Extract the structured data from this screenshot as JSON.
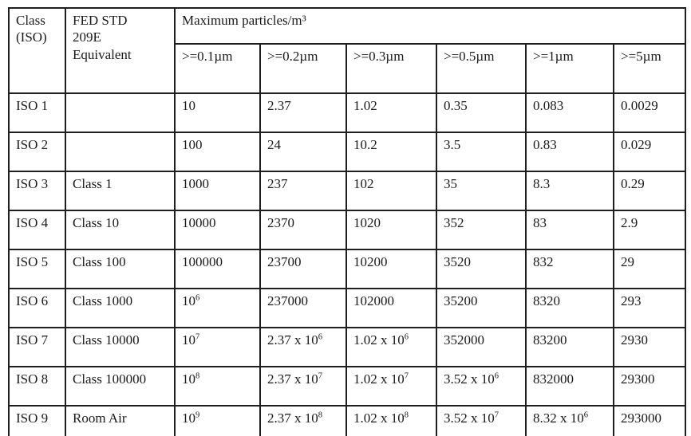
{
  "page": {
    "background": "#ffffff",
    "border_color": "#1f1f1f",
    "text_color": "#1a1a1a"
  },
  "table": {
    "header": {
      "class_iso": "Class\n(ISO)",
      "fed_std": "FED STD\n209E\nEquivalent",
      "group_title": "Maximum particles/m³",
      "subheaders": [
        ">=0.1µm",
        ">=0.2µm",
        ">=0.3µm",
        ">=0.5µm",
        ">=1µm",
        ">=5µm"
      ]
    },
    "rows": [
      {
        "iso": "ISO 1",
        "fed": "",
        "values": [
          "10",
          "2.37",
          "1.02",
          "0.35",
          "0.083",
          "0.0029"
        ]
      },
      {
        "iso": "ISO 2",
        "fed": "",
        "values": [
          "100",
          "24",
          "10.2",
          "3.5",
          "0.83",
          "0.029"
        ]
      },
      {
        "iso": "ISO 3",
        "fed": "Class 1",
        "values": [
          "1000",
          "237",
          "102",
          "35",
          "8.3",
          "0.29"
        ]
      },
      {
        "iso": "ISO 4",
        "fed": "Class 10",
        "values": [
          "10000",
          "2370",
          "1020",
          "352",
          "83",
          "2.9"
        ]
      },
      {
        "iso": "ISO 5",
        "fed": "Class 100",
        "values": [
          "100000",
          "23700",
          "10200",
          "3520",
          "832",
          "29"
        ]
      },
      {
        "iso": "ISO 6",
        "fed": "Class 1000",
        "values": [
          "10^6",
          "237000",
          "102000",
          "35200",
          "8320",
          "293"
        ]
      },
      {
        "iso": "ISO 7",
        "fed": "Class 10000",
        "values": [
          "10^7",
          "2.37 x 10^6",
          "1.02 x 10^6",
          "352000",
          "83200",
          "2930"
        ]
      },
      {
        "iso": "ISO 8",
        "fed": "Class 100000",
        "values": [
          "10^8",
          "2.37 x 10^7",
          "1.02 x 10^7",
          "3.52 x 10^6",
          "832000",
          "29300"
        ]
      },
      {
        "iso": "ISO 9",
        "fed": "Room Air",
        "values": [
          "10^9",
          "2.37 x 10^8",
          "1.02 x 10^8",
          "3.52 x 10^7",
          "8.32 x 10^6",
          "293000"
        ]
      }
    ]
  }
}
